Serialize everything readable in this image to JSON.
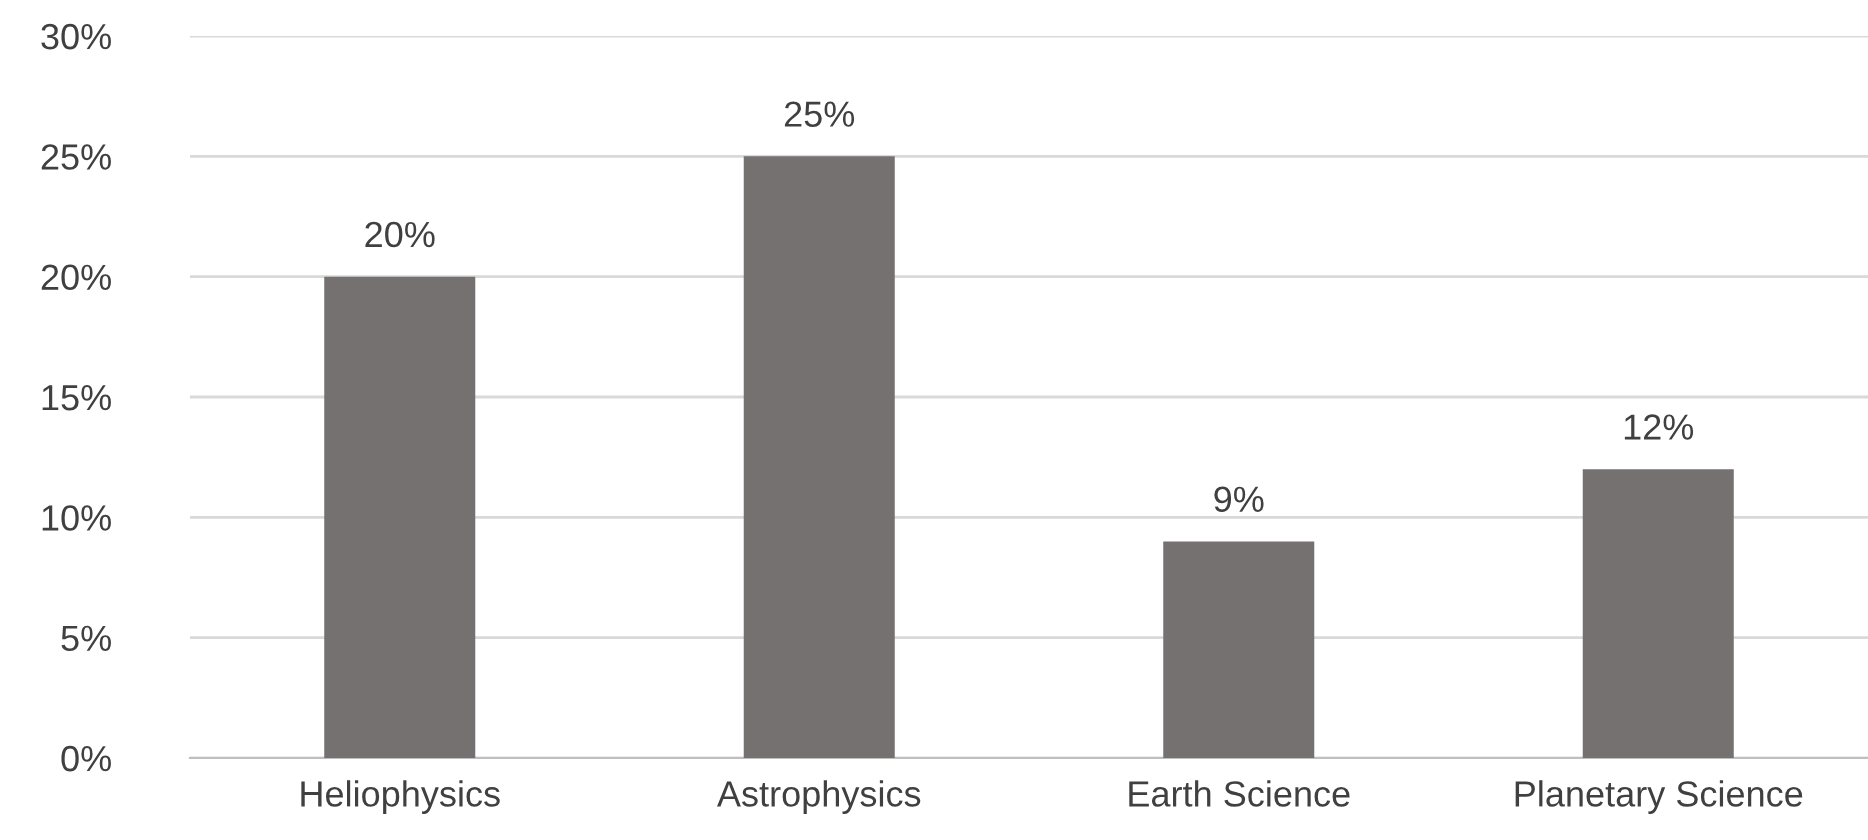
{
  "chart_data": {
    "type": "bar",
    "categories": [
      "Heliophysics",
      "Astrophysics",
      "Earth Science",
      "Planetary Science"
    ],
    "values": [
      20,
      25,
      9,
      12
    ],
    "color": "#767171",
    "value_labels": [
      "20%",
      "25%",
      "9%",
      "12%"
    ],
    "ylim": [
      0,
      30
    ],
    "yticks": [
      {
        "value": 0,
        "label": "0%"
      },
      {
        "value": 5,
        "label": "5%"
      },
      {
        "value": 10,
        "label": "10%"
      },
      {
        "value": 15,
        "label": "15%"
      },
      {
        "value": 20,
        "label": "20%"
      },
      {
        "value": 25,
        "label": "25%"
      },
      {
        "value": 30,
        "label": "30%"
      }
    ],
    "grid": "y",
    "legend": false
  }
}
